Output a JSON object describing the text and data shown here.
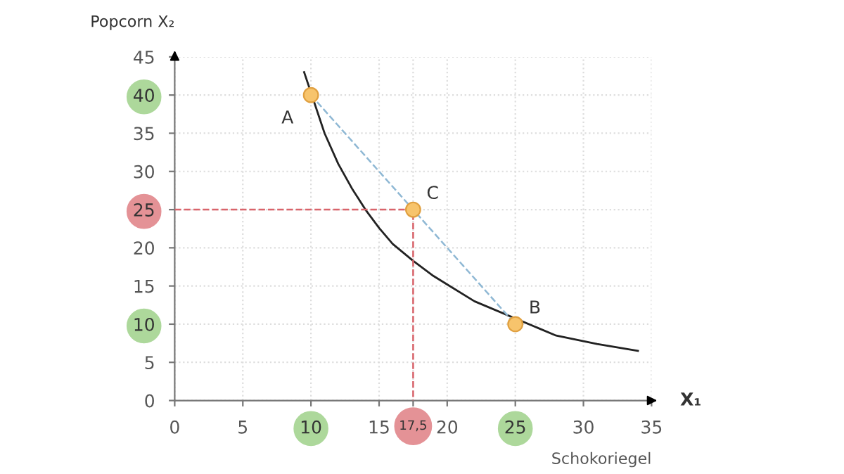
{
  "chart_data": {
    "type": "line",
    "xlabel": "Schokoriegel",
    "ylabel": "Popcorn X₂",
    "xlim": [
      0,
      35
    ],
    "ylim": [
      0,
      45
    ],
    "xticks": [
      0,
      5,
      10,
      15,
      {
        "value": 17.5,
        "label": "17,5"
      },
      20,
      25,
      30,
      35
    ],
    "yticks": [
      0,
      5,
      10,
      15,
      20,
      25,
      30,
      35,
      40,
      45
    ],
    "grid": true,
    "series": [
      {
        "type": "line",
        "color": "#222222",
        "line_style": "solid",
        "x": [
          9.5,
          11,
          12,
          13,
          14,
          15,
          16,
          17.5,
          19,
          20,
          22,
          28,
          31,
          34
        ],
        "values": [
          43,
          35,
          31,
          27.8,
          25,
          22.6,
          20.5,
          18.3,
          16.3,
          15.2,
          13,
          8.5,
          7.4,
          6.5
        ]
      },
      {
        "type": "line",
        "color": "#8fb8d4",
        "line_style": "dashed",
        "x": [
          10,
          25
        ],
        "values": [
          40,
          10
        ]
      },
      {
        "type": "line",
        "color": "#d9646b",
        "line_style": "dashed",
        "x": [
          0,
          17.5,
          17.5
        ],
        "values": [
          25,
          25,
          0
        ]
      },
      {
        "type": "scatter",
        "color": "#f7c46c",
        "marker": "circle",
        "x": [
          10,
          17.5,
          25
        ],
        "values": [
          40,
          25,
          10
        ]
      }
    ],
    "annotations": [
      {
        "text": "A",
        "x": 10,
        "y": 40
      },
      {
        "text": "C",
        "x": 17.5,
        "y": 25
      },
      {
        "text": "B",
        "x": 25,
        "y": 10
      },
      "X₁"
    ]
  }
}
